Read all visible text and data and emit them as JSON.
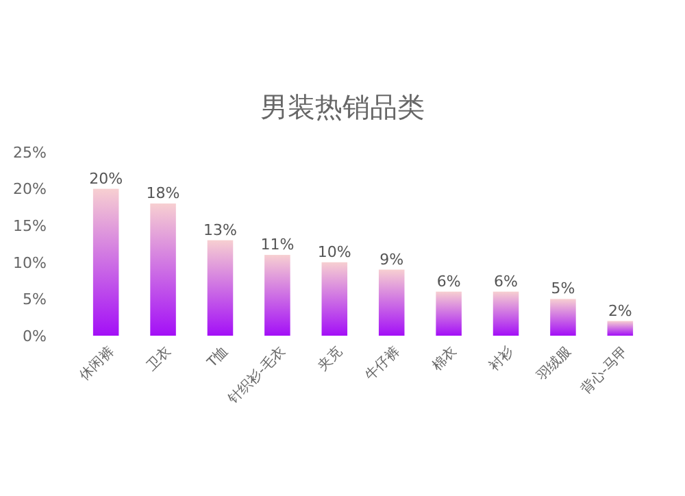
{
  "chart_data": {
    "type": "bar",
    "title": "男装热销品类",
    "categories": [
      "休闲裤",
      "卫衣",
      "T恤",
      "针织衫-毛衣",
      "夹克",
      "牛仔裤",
      "棉衣",
      "衬衫",
      "羽绒服",
      "背心-马甲"
    ],
    "values": [
      20,
      18,
      13,
      11,
      10,
      9,
      6,
      6,
      5,
      2
    ],
    "color": "#a30ff7",
    "ylim": [
      0,
      25
    ],
    "yticks": [
      {
        "value": 0,
        "label": "0%"
      },
      {
        "value": 5,
        "label": "5%"
      },
      {
        "value": 10,
        "label": "10%"
      },
      {
        "value": 15,
        "label": "15%"
      },
      {
        "value": 20,
        "label": "20%"
      },
      {
        "value": 25,
        "label": "25%"
      }
    ],
    "value_labels": [
      "20%",
      "18%",
      "13%",
      "11%",
      "10%",
      "9%",
      "6%",
      "6%",
      "5%",
      "2%"
    ]
  }
}
